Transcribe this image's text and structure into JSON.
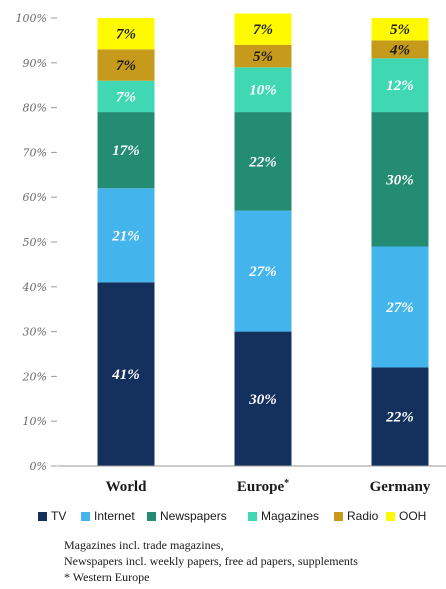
{
  "chart_data": {
    "type": "bar",
    "stacked": true,
    "categories": [
      "World",
      "Europe*",
      "Germany"
    ],
    "series": [
      {
        "name": "TV",
        "color": "#14315e",
        "values": [
          41,
          30,
          22
        ]
      },
      {
        "name": "Internet",
        "color": "#43b4ec",
        "values": [
          21,
          27,
          27
        ]
      },
      {
        "name": "Newspapers",
        "color": "#238c72",
        "values": [
          17,
          22,
          30
        ]
      },
      {
        "name": "Magazines",
        "color": "#3fd8b2",
        "values": [
          7,
          10,
          12
        ]
      },
      {
        "name": "Radio",
        "color": "#c69a1a",
        "values": [
          7,
          5,
          4
        ]
      },
      {
        "name": "OOH",
        "color": "#fffa00",
        "values": [
          7,
          7,
          5
        ]
      }
    ],
    "ylim": [
      0,
      100
    ],
    "yticks": [
      "0%",
      "10%",
      "20%",
      "30%",
      "40%",
      "50%",
      "60%",
      "70%",
      "80%",
      "90%",
      "100%"
    ],
    "grid": false,
    "legend_position": "bottom"
  },
  "notes": [
    "Magazines incl. trade magazines,",
    "Newspapers incl. weekly papers, free ad papers, supplements",
    "* Western Europe"
  ]
}
